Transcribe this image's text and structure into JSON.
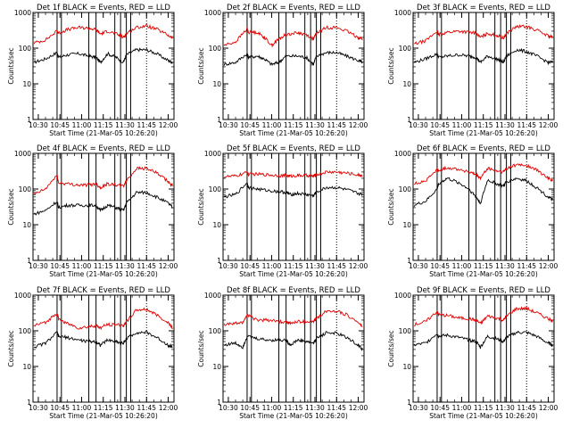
{
  "figure": {
    "ylabel": "Counts/sec",
    "xlabel": "Start Time (21-Mar-05 10:26:20)",
    "series_colors": {
      "events": "#000000",
      "lld": "#e00000"
    }
  },
  "chart_data": [
    {
      "type": "line",
      "title": "Det 1f BLACK = Events, RED = LLD",
      "xlabel": "Start Time (21-Mar-05 10:26:20)",
      "ylabel": "Counts/sec",
      "yscale": "log",
      "ylim": [
        1,
        1000
      ],
      "ytick_labels": [
        "1",
        "10",
        "100",
        "1000"
      ],
      "xlim": [
        "10:26:20",
        "12:04"
      ],
      "xtick_labels": [
        "10:30",
        "10:45",
        "11:00",
        "11:15",
        "11:30",
        "11:45",
        "12:00"
      ],
      "x": [
        "10:27",
        "10:35",
        "10:43",
        "10:44",
        "10:50",
        "10:58",
        "11:05",
        "11:10",
        "11:13",
        "11:18",
        "11:24",
        "11:29",
        "11:31",
        "11:38",
        "11:45",
        "11:52",
        "12:00",
        "12:03"
      ],
      "series": [
        {
          "values": [
            40,
            50,
            75,
            55,
            65,
            70,
            60,
            55,
            40,
            70,
            55,
            40,
            65,
            90,
            90,
            70,
            45,
            40
          ]
        },
        {
          "values": [
            140,
            170,
            300,
            260,
            330,
            380,
            360,
            330,
            250,
            300,
            250,
            200,
            260,
            380,
            420,
            340,
            230,
            190
          ]
        }
      ],
      "vertical_lines": [
        "10:43",
        "10:46",
        "11:05",
        "11:10",
        "11:23",
        "11:27",
        "11:31",
        "11:34"
      ],
      "dotted_lines": [
        "11:45"
      ]
    },
    {
      "type": "line",
      "title": "Det 2f BLACK = Events, RED = LLD",
      "xlabel": "Start Time (21-Mar-05 10:26:20)",
      "ylabel": "Counts/sec",
      "yscale": "log",
      "ylim": [
        1,
        1000
      ],
      "ytick_labels": [
        "1",
        "10",
        "100",
        "1000"
      ],
      "xlim": [
        "10:26:20",
        "12:04"
      ],
      "xtick_labels": [
        "10:30",
        "10:45",
        "11:00",
        "11:15",
        "11:30",
        "11:45",
        "12:00"
      ],
      "x": [
        "10:27",
        "10:35",
        "10:43",
        "10:44",
        "10:50",
        "10:55",
        "11:00",
        "11:05",
        "11:10",
        "11:18",
        "11:24",
        "11:29",
        "11:31",
        "11:38",
        "11:45",
        "11:52",
        "12:00",
        "12:03"
      ],
      "series": [
        {
          "values": [
            35,
            40,
            70,
            55,
            60,
            50,
            35,
            40,
            60,
            60,
            55,
            35,
            60,
            75,
            75,
            60,
            45,
            40
          ]
        },
        {
          "values": [
            120,
            150,
            350,
            280,
            280,
            200,
            120,
            180,
            240,
            270,
            240,
            180,
            260,
            380,
            380,
            300,
            200,
            180
          ]
        }
      ],
      "vertical_lines": [
        "10:43",
        "10:46",
        "11:05",
        "11:10",
        "11:23",
        "11:27",
        "11:31",
        "11:34"
      ],
      "dotted_lines": [
        "11:45"
      ]
    },
    {
      "type": "line",
      "title": "Det 3f BLACK = Events, RED = LLD",
      "xlabel": "Start Time (21-Mar-05 10:26:20)",
      "ylabel": "Counts/sec",
      "yscale": "log",
      "ylim": [
        1,
        1000
      ],
      "ytick_labels": [
        "1",
        "10",
        "100",
        "1000"
      ],
      "xlim": [
        "10:26:20",
        "12:04"
      ],
      "xtick_labels": [
        "10:30",
        "10:45",
        "11:00",
        "11:15",
        "11:30",
        "11:45",
        "12:00"
      ],
      "x": [
        "10:27",
        "10:35",
        "10:43",
        "10:44",
        "10:50",
        "10:58",
        "11:05",
        "11:10",
        "11:13",
        "11:18",
        "11:24",
        "11:29",
        "11:31",
        "11:38",
        "11:45",
        "11:52",
        "12:00",
        "12:03"
      ],
      "series": [
        {
          "values": [
            40,
            50,
            70,
            55,
            60,
            65,
            60,
            55,
            40,
            60,
            50,
            40,
            60,
            90,
            80,
            60,
            40,
            40
          ]
        },
        {
          "values": [
            130,
            160,
            300,
            240,
            280,
            300,
            280,
            260,
            200,
            260,
            230,
            190,
            260,
            400,
            400,
            320,
            220,
            200
          ]
        }
      ],
      "vertical_lines": [
        "10:43",
        "10:46",
        "11:05",
        "11:10",
        "11:23",
        "11:27",
        "11:31",
        "11:34"
      ],
      "dotted_lines": [
        "11:45"
      ]
    },
    {
      "type": "line",
      "title": "Det 4f BLACK = Events, RED = LLD",
      "xlabel": "Start Time (21-Mar-05 10:26:20)",
      "ylabel": "Counts/sec",
      "yscale": "log",
      "ylim": [
        1,
        1000
      ],
      "ytick_labels": [
        "1",
        "10",
        "100",
        "1000"
      ],
      "xlim": [
        "10:26:20",
        "12:04"
      ],
      "xtick_labels": [
        "10:30",
        "10:45",
        "11:00",
        "11:15",
        "11:30",
        "11:45",
        "12:00"
      ],
      "x": [
        "10:27",
        "10:35",
        "10:43",
        "10:44",
        "10:50",
        "10:58",
        "11:05",
        "11:10",
        "11:13",
        "11:18",
        "11:24",
        "11:29",
        "11:31",
        "11:38",
        "11:45",
        "11:52",
        "12:00",
        "12:03"
      ],
      "series": [
        {
          "values": [
            20,
            25,
            45,
            30,
            35,
            35,
            35,
            35,
            25,
            35,
            30,
            25,
            40,
            80,
            80,
            60,
            40,
            30
          ]
        },
        {
          "values": [
            70,
            100,
            250,
            150,
            140,
            130,
            130,
            140,
            110,
            140,
            130,
            120,
            170,
            380,
            380,
            280,
            160,
            120
          ]
        }
      ],
      "vertical_lines": [
        "10:43",
        "10:46",
        "11:05",
        "11:10",
        "11:23",
        "11:27",
        "11:31",
        "11:34"
      ],
      "dotted_lines": [
        "11:45"
      ]
    },
    {
      "type": "line",
      "title": "Det 5f BLACK = Events, RED = LLD",
      "xlabel": "Start Time (21-Mar-05 10:26:20)",
      "ylabel": "Counts/sec",
      "yscale": "log",
      "ylim": [
        1,
        1000
      ],
      "ytick_labels": [
        "1",
        "10",
        "100",
        "1000"
      ],
      "xlim": [
        "10:26:20",
        "12:04"
      ],
      "xtick_labels": [
        "10:30",
        "10:45",
        "11:00",
        "11:15",
        "11:30",
        "11:45",
        "12:00"
      ],
      "x": [
        "10:27",
        "10:35",
        "10:43",
        "10:44",
        "10:50",
        "10:58",
        "11:05",
        "11:10",
        "11:13",
        "11:18",
        "11:24",
        "11:29",
        "11:31",
        "11:38",
        "11:45",
        "11:52",
        "12:00",
        "12:03"
      ],
      "series": [
        {
          "values": [
            60,
            70,
            150,
            110,
            100,
            90,
            85,
            80,
            70,
            75,
            70,
            65,
            80,
            110,
            110,
            95,
            75,
            70
          ]
        },
        {
          "values": [
            220,
            230,
            290,
            260,
            260,
            250,
            240,
            240,
            230,
            240,
            240,
            230,
            250,
            300,
            300,
            280,
            250,
            240
          ]
        }
      ],
      "vertical_lines": [
        "10:43",
        "10:46",
        "11:05",
        "11:10",
        "11:23",
        "11:27",
        "11:31",
        "11:34"
      ],
      "dotted_lines": [
        "11:45"
      ]
    },
    {
      "type": "line",
      "title": "Det 6f BLACK = Events, RED = LLD",
      "xlabel": "Start Time (21-Mar-05 10:26:20)",
      "ylabel": "Counts/sec",
      "yscale": "log",
      "ylim": [
        1,
        1000
      ],
      "ytick_labels": [
        "1",
        "10",
        "100",
        "1000"
      ],
      "xlim": [
        "10:26:20",
        "12:04"
      ],
      "xtick_labels": [
        "10:30",
        "10:45",
        "11:00",
        "11:15",
        "11:30",
        "11:45",
        "12:00"
      ],
      "x": [
        "10:27",
        "10:35",
        "10:43",
        "10:44",
        "10:50",
        "10:58",
        "11:05",
        "11:10",
        "11:13",
        "11:18",
        "11:24",
        "11:29",
        "11:31",
        "11:38",
        "11:45",
        "11:52",
        "12:00",
        "12:03"
      ],
      "series": [
        {
          "values": [
            35,
            45,
            100,
            140,
            200,
            150,
            100,
            60,
            40,
            180,
            140,
            120,
            160,
            200,
            170,
            110,
            60,
            50
          ]
        },
        {
          "values": [
            140,
            170,
            350,
            320,
            400,
            360,
            300,
            250,
            200,
            380,
            320,
            300,
            380,
            480,
            460,
            340,
            200,
            170
          ]
        }
      ],
      "vertical_lines": [
        "10:43",
        "10:46",
        "11:05",
        "11:10",
        "11:23",
        "11:27",
        "11:31",
        "11:34"
      ],
      "dotted_lines": [
        "11:45"
      ]
    },
    {
      "type": "line",
      "title": "Det 7f BLACK = Events, RED = LLD",
      "xlabel": "Start Time (21-Mar-05 10:26:20)",
      "ylabel": "Counts/sec",
      "yscale": "log",
      "ylim": [
        1,
        1000
      ],
      "ytick_labels": [
        "1",
        "10",
        "100",
        "1000"
      ],
      "xlim": [
        "10:26:20",
        "12:04"
      ],
      "xtick_labels": [
        "10:30",
        "10:45",
        "11:00",
        "11:15",
        "11:30",
        "11:45",
        "12:00"
      ],
      "x": [
        "10:27",
        "10:35",
        "10:43",
        "10:44",
        "10:50",
        "10:58",
        "11:05",
        "11:10",
        "11:13",
        "11:18",
        "11:24",
        "11:29",
        "11:31",
        "11:38",
        "11:45",
        "11:52",
        "12:00",
        "12:03"
      ],
      "series": [
        {
          "values": [
            35,
            45,
            90,
            70,
            65,
            55,
            50,
            50,
            40,
            55,
            50,
            45,
            60,
            90,
            90,
            65,
            40,
            35
          ]
        },
        {
          "values": [
            140,
            170,
            320,
            220,
            160,
            120,
            130,
            140,
            120,
            150,
            150,
            140,
            180,
            380,
            400,
            280,
            170,
            120
          ]
        }
      ],
      "vertical_lines": [
        "10:43",
        "10:46",
        "11:05",
        "11:10",
        "11:23",
        "11:27",
        "11:31",
        "11:34"
      ],
      "dotted_lines": [
        "11:45"
      ]
    },
    {
      "type": "line",
      "title": "Det 8f BLACK = Events, RED = LLD",
      "xlabel": "Start Time (21-Mar-05 10:26:20)",
      "ylabel": "Counts/sec",
      "yscale": "log",
      "ylim": [
        1,
        1000
      ],
      "ytick_labels": [
        "1",
        "10",
        "100",
        "1000"
      ],
      "xlim": [
        "10:26:20",
        "12:04"
      ],
      "xtick_labels": [
        "10:30",
        "10:45",
        "11:00",
        "11:15",
        "11:30",
        "11:45",
        "12:00"
      ],
      "x": [
        "10:27",
        "10:35",
        "10:40",
        "10:43",
        "10:50",
        "10:58",
        "11:05",
        "11:10",
        "11:13",
        "11:18",
        "11:24",
        "11:29",
        "11:31",
        "11:38",
        "11:45",
        "11:52",
        "12:00",
        "12:03"
      ],
      "series": [
        {
          "values": [
            40,
            45,
            35,
            70,
            60,
            55,
            55,
            55,
            40,
            55,
            50,
            45,
            60,
            90,
            85,
            65,
            40,
            30
          ]
        },
        {
          "values": [
            150,
            160,
            170,
            280,
            200,
            200,
            180,
            180,
            160,
            180,
            180,
            180,
            220,
            360,
            360,
            280,
            170,
            130
          ]
        }
      ],
      "vertical_lines": [
        "10:43",
        "10:46",
        "11:05",
        "11:10",
        "11:23",
        "11:27",
        "11:31",
        "11:34"
      ],
      "dotted_lines": [
        "11:45"
      ]
    },
    {
      "type": "line",
      "title": "Det 9f BLACK = Events, RED = LLD",
      "xlabel": "Start Time (21-Mar-05 10:26:20)",
      "ylabel": "Counts/sec",
      "yscale": "log",
      "ylim": [
        1,
        1000
      ],
      "ytick_labels": [
        "1",
        "10",
        "100",
        "1000"
      ],
      "xlim": [
        "10:26:20",
        "12:04"
      ],
      "xtick_labels": [
        "10:30",
        "10:45",
        "11:00",
        "11:15",
        "11:30",
        "11:45",
        "12:00"
      ],
      "x": [
        "10:27",
        "10:35",
        "10:43",
        "10:44",
        "10:50",
        "10:58",
        "11:05",
        "11:10",
        "11:13",
        "11:18",
        "11:24",
        "11:29",
        "11:31",
        "11:38",
        "11:45",
        "11:52",
        "12:00",
        "12:03"
      ],
      "series": [
        {
          "values": [
            40,
            45,
            85,
            70,
            75,
            65,
            55,
            50,
            35,
            70,
            60,
            50,
            65,
            90,
            90,
            70,
            45,
            40
          ]
        },
        {
          "values": [
            150,
            180,
            350,
            280,
            270,
            230,
            220,
            200,
            160,
            260,
            230,
            200,
            260,
            420,
            420,
            320,
            220,
            180
          ]
        }
      ],
      "vertical_lines": [
        "10:43",
        "10:46",
        "11:05",
        "11:10",
        "11:23",
        "11:27",
        "11:31",
        "11:34"
      ],
      "dotted_lines": [
        "11:45"
      ]
    }
  ]
}
